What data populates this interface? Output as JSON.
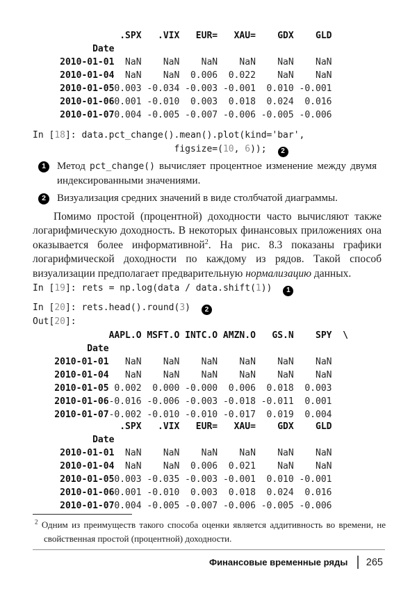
{
  "tables": [
    {
      "columns": [
        ".SPX",
        ".VIX",
        "EUR=",
        "XAU=",
        "GDX",
        "GLD"
      ],
      "index_label": "Date",
      "continuation": "",
      "label_pad": 15,
      "col_pads": [
        5,
        7,
        7,
        7,
        7,
        7
      ],
      "rows": [
        [
          "2010-01-01",
          "NaN",
          "NaN",
          "NaN",
          "NaN",
          "NaN",
          "NaN"
        ],
        [
          "2010-01-04",
          "NaN",
          "NaN",
          "0.006",
          "0.022",
          "NaN",
          "NaN"
        ],
        [
          "2010-01-05",
          "0.003",
          "-0.034",
          "-0.003",
          "-0.001",
          "0.010",
          "-0.001"
        ],
        [
          "2010-01-06",
          "0.001",
          "-0.010",
          "0.003",
          "0.018",
          "0.024",
          "0.016"
        ],
        [
          "2010-01-07",
          "0.004",
          "-0.005",
          "-0.007",
          "-0.006",
          "-0.005",
          "-0.006"
        ]
      ]
    },
    {
      "columns": [
        "AAPL.O",
        "MSFT.O",
        "INTC.O",
        "AMZN.O",
        "GS.N",
        "SPY"
      ],
      "index_label": "Date",
      "continuation": "\\",
      "label_pad": 14,
      "col_pads": [
        6,
        7,
        7,
        7,
        7,
        7
      ],
      "rows": [
        [
          "2010-01-01",
          "NaN",
          "NaN",
          "NaN",
          "NaN",
          "NaN",
          "NaN"
        ],
        [
          "2010-01-04",
          "NaN",
          "NaN",
          "NaN",
          "NaN",
          "NaN",
          "NaN"
        ],
        [
          "2010-01-05",
          "0.002",
          "0.000",
          "-0.000",
          "0.006",
          "0.018",
          "0.003"
        ],
        [
          "2010-01-06",
          "-0.016",
          "-0.006",
          "-0.003",
          "-0.018",
          "-0.011",
          "0.001"
        ],
        [
          "2010-01-07",
          "-0.002",
          "-0.010",
          "-0.010",
          "-0.017",
          "0.019",
          "0.004"
        ]
      ]
    },
    {
      "columns": [
        ".SPX",
        ".VIX",
        "EUR=",
        "XAU=",
        "GDX",
        "GLD"
      ],
      "index_label": "Date",
      "continuation": "",
      "label_pad": 15,
      "col_pads": [
        5,
        7,
        7,
        7,
        7,
        7
      ],
      "rows": [
        [
          "2010-01-01",
          "NaN",
          "NaN",
          "NaN",
          "NaN",
          "NaN",
          "NaN"
        ],
        [
          "2010-01-04",
          "NaN",
          "NaN",
          "0.006",
          "0.021",
          "NaN",
          "NaN"
        ],
        [
          "2010-01-05",
          "0.003",
          "-0.035",
          "-0.003",
          "-0.001",
          "0.010",
          "-0.001"
        ],
        [
          "2010-01-06",
          "0.001",
          "-0.010",
          "0.003",
          "0.018",
          "0.024",
          "0.016"
        ],
        [
          "2010-01-07",
          "0.004",
          "-0.005",
          "-0.007",
          "-0.006",
          "-0.005",
          "-0.006"
        ]
      ]
    }
  ],
  "code_blocks": [
    {
      "lines": [
        {
          "text": "In [18]: data.pct_change().mean().plot(kind='bar',"
        },
        {
          "text": "                          figsize=(10, 6));",
          "callout": "2"
        }
      ]
    },
    {
      "lines": [
        {
          "text": "In [19]: rets = np.log(data / data.shift(1))",
          "callout": "1"
        }
      ]
    },
    {
      "lines": [
        {
          "text": "In [20]: rets.head().round(3)",
          "callout": "2"
        },
        {
          "text": "Out[20]:"
        }
      ]
    }
  ],
  "callout_notes": [
    {
      "num": "1",
      "segments": [
        {
          "t": "Метод "
        },
        {
          "t": "pct_change()",
          "s": "code"
        },
        {
          "t": " вычисляет процентное изменение между двумя ин­дексированными значениями."
        }
      ]
    },
    {
      "num": "2",
      "segments": [
        {
          "t": "Визуализация средних значений в виде столбчатой диаграммы."
        }
      ]
    }
  ],
  "paragraph": {
    "segments": [
      {
        "t": "Помимо простой (процентной) доходности часто вычисляют также лога­рифмическую доходность. В некоторых финансовых приложениях она оказы­вается более информативной"
      },
      {
        "t": "2",
        "s": "sup"
      },
      {
        "t": ". На рис. 8.3 показаны графики логарифмической доходности по каждому из рядов. Такой способ визуализации предполагает предварительную "
      },
      {
        "t": "нормализацию",
        "s": "i"
      },
      {
        "t": " данных."
      }
    ]
  },
  "footnote": {
    "marker": "2",
    "text": "Одним из преимуществ такого способа оценки является аддитивность во времени, не свой­ственная простой (процентной) доходности."
  },
  "footer": {
    "section_title": "Финансовые временные ряды",
    "page_number": "265"
  }
}
